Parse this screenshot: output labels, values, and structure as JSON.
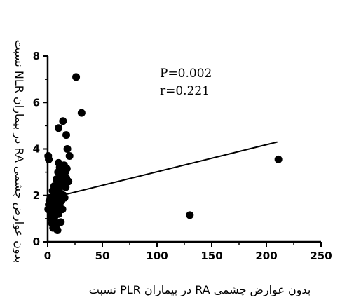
{
  "chart_data": {
    "type": "scatter",
    "xlabel": "نسبت PLR در بیماران RA بدون عوارض چشمی",
    "ylabel": "نسبت NLR در بیماران RA بدون عوارض چشمی",
    "xlim": [
      0,
      250
    ],
    "ylim": [
      0,
      8
    ],
    "x_ticks": [
      "0",
      "50",
      "100",
      "150",
      "200",
      "250"
    ],
    "y_ticks": [
      "0",
      "2",
      "4",
      "6",
      "8"
    ],
    "annotations": [
      "P=0.002",
      "r=0.221"
    ],
    "grid": false,
    "regression_line": {
      "x": [
        0,
        210
      ],
      "y": [
        1.85,
        4.3
      ]
    },
    "points": [
      {
        "x": 0.5,
        "y": 3.7
      },
      {
        "x": 1,
        "y": 3.55
      },
      {
        "x": 0.5,
        "y": 1.4
      },
      {
        "x": 1,
        "y": 1.6
      },
      {
        "x": 1.5,
        "y": 1.75
      },
      {
        "x": 2,
        "y": 1.5
      },
      {
        "x": 2.5,
        "y": 1.9
      },
      {
        "x": 3,
        "y": 1.2
      },
      {
        "x": 3.5,
        "y": 1.0
      },
      {
        "x": 4,
        "y": 1.45
      },
      {
        "x": 4,
        "y": 0.8
      },
      {
        "x": 4.5,
        "y": 2.2
      },
      {
        "x": 5,
        "y": 0.6
      },
      {
        "x": 5,
        "y": 1.3
      },
      {
        "x": 5.5,
        "y": 1.7
      },
      {
        "x": 6,
        "y": 2.4
      },
      {
        "x": 6,
        "y": 0.9
      },
      {
        "x": 6.5,
        "y": 1.1
      },
      {
        "x": 7,
        "y": 1.6
      },
      {
        "x": 7,
        "y": 2.0
      },
      {
        "x": 7.5,
        "y": 0.7
      },
      {
        "x": 8,
        "y": 2.7
      },
      {
        "x": 8,
        "y": 1.35
      },
      {
        "x": 8.5,
        "y": 2.3
      },
      {
        "x": 9,
        "y": 0.5
      },
      {
        "x": 9,
        "y": 1.85
      },
      {
        "x": 9.5,
        "y": 3.0
      },
      {
        "x": 10,
        "y": 3.4
      },
      {
        "x": 10,
        "y": 1.2
      },
      {
        "x": 10.5,
        "y": 2.55
      },
      {
        "x": 11,
        "y": 1.5
      },
      {
        "x": 11,
        "y": 3.2
      },
      {
        "x": 11.5,
        "y": 2.1
      },
      {
        "x": 12,
        "y": 0.85
      },
      {
        "x": 12,
        "y": 2.8
      },
      {
        "x": 12.5,
        "y": 1.75
      },
      {
        "x": 13,
        "y": 3.1
      },
      {
        "x": 13,
        "y": 2.4
      },
      {
        "x": 13.5,
        "y": 1.4
      },
      {
        "x": 14,
        "y": 2.9
      },
      {
        "x": 14.5,
        "y": 2.0
      },
      {
        "x": 15,
        "y": 3.3
      },
      {
        "x": 15,
        "y": 2.6
      },
      {
        "x": 15.5,
        "y": 1.9
      },
      {
        "x": 16,
        "y": 3.0
      },
      {
        "x": 16.5,
        "y": 2.35
      },
      {
        "x": 17,
        "y": 2.75
      },
      {
        "x": 17.5,
        "y": 3.15
      },
      {
        "x": 18,
        "y": 4.0
      },
      {
        "x": 19,
        "y": 2.6
      },
      {
        "x": 20,
        "y": 3.7
      },
      {
        "x": 10,
        "y": 4.9
      },
      {
        "x": 14,
        "y": 5.2
      },
      {
        "x": 17,
        "y": 4.6
      },
      {
        "x": 26,
        "y": 7.1
      },
      {
        "x": 31,
        "y": 5.55
      },
      {
        "x": 130,
        "y": 1.15
      },
      {
        "x": 211,
        "y": 3.55
      }
    ]
  }
}
